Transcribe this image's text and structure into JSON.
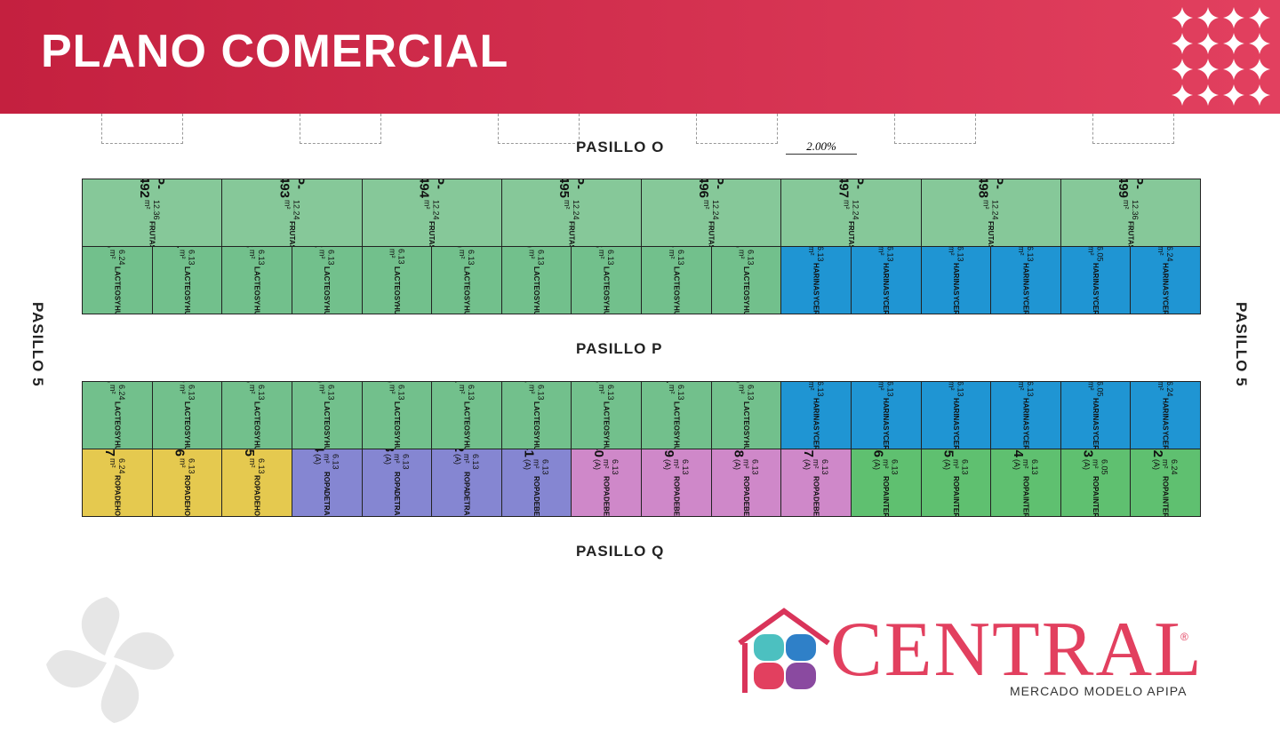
{
  "header": {
    "title": "PLANO COMERCIAL"
  },
  "aisles": {
    "top": "PASILLO O",
    "middle": "PASILLO P",
    "bottom": "PASILLO Q",
    "left": "PASILLO 5",
    "right": "PASILLO 5",
    "slope": "2.00%"
  },
  "rows": [
    {
      "stalls": [
        {
          "id": "P-492",
          "area": "12.36 m²",
          "use": [
            "FRUTAS"
          ],
          "color": "#86c899"
        },
        {
          "id": "P-493",
          "area": "12.24 m²",
          "use": [
            "FRUTAS"
          ],
          "color": "#86c899"
        },
        {
          "id": "P-494",
          "area": "12.24 m²",
          "use": [
            "FRUTAS"
          ],
          "color": "#86c899"
        },
        {
          "id": "P-495",
          "area": "12.24 m²",
          "use": [
            "FRUTAS"
          ],
          "color": "#86c899"
        },
        {
          "id": "P-496",
          "area": "12.24 m²",
          "use": [
            "FRUTAS"
          ],
          "color": "#86c899"
        },
        {
          "id": "P-497",
          "area": "12.24 m²",
          "use": [
            "FRUTAS"
          ],
          "color": "#86c899"
        },
        {
          "id": "P-498",
          "area": "12.24 m²",
          "use": [
            "FRUTAS"
          ],
          "color": "#86c899"
        },
        {
          "id": "P-499",
          "area": "12.36 m²",
          "use": [
            "FRUTAS"
          ],
          "color": "#86c899"
        }
      ]
    },
    {
      "stalls": [
        {
          "id": "P-515",
          "area": "6.24 m²",
          "use": [
            "LACTEOS",
            "Y",
            "HUEVOS"
          ],
          "color": "#72c08c"
        },
        {
          "id": "P-514",
          "area": "6.13 m²",
          "use": [
            "LACTEOS",
            "Y",
            "HUEVOS"
          ],
          "color": "#72c08c"
        },
        {
          "id": "P-513",
          "area": "6.13 m²",
          "use": [
            "LACTEOS",
            "Y",
            "HUEVOS"
          ],
          "color": "#72c08c"
        },
        {
          "id": "P-512",
          "area": "6.13 m²",
          "use": [
            "LACTEOS",
            "Y",
            "HUEVOS"
          ],
          "color": "#72c08c"
        },
        {
          "id": "P-511",
          "area": "6.13 m²",
          "use": [
            "LACTEOS",
            "Y",
            "HUEVOS"
          ],
          "color": "#72c08c"
        },
        {
          "id": "P-510",
          "area": "6.13 m²",
          "use": [
            "LACTEOS",
            "Y",
            "HUEVOS"
          ],
          "color": "#72c08c"
        },
        {
          "id": "P-509",
          "area": "6.13 m²",
          "use": [
            "LACTEOS",
            "Y",
            "HUEVOS"
          ],
          "color": "#72c08c"
        },
        {
          "id": "P-508",
          "area": "6.13 m²",
          "use": [
            "LACTEOS",
            "Y",
            "HUEVOS"
          ],
          "color": "#72c08c"
        },
        {
          "id": "P-507",
          "area": "6.13 m²",
          "use": [
            "LACTEOS",
            "Y",
            "HUEVOS"
          ],
          "color": "#72c08c"
        },
        {
          "id": "P-506",
          "area": "6.13 m²",
          "use": [
            "LACTEOS",
            "Y",
            "HUEVOS"
          ],
          "color": "#72c08c"
        },
        {
          "id": "P-505",
          "area": "6.13 m²",
          "use": [
            "HARINAS",
            "Y",
            "CEREALES"
          ],
          "color": "#1f95d3"
        },
        {
          "id": "P-504",
          "area": "6.13 m²",
          "use": [
            "HARINAS",
            "Y",
            "CEREALES"
          ],
          "color": "#1f95d3"
        },
        {
          "id": "P-503",
          "area": "6.13 m²",
          "use": [
            "HARINAS",
            "Y",
            "CEREALES"
          ],
          "color": "#1f95d3"
        },
        {
          "id": "P-502",
          "area": "6.13 m²",
          "use": [
            "HARINAS",
            "Y",
            "CEREALES"
          ],
          "color": "#1f95d3"
        },
        {
          "id": "P-501",
          "area": "6.05 m²",
          "use": [
            "HARINAS",
            "Y",
            "CEREALES"
          ],
          "color": "#1f95d3"
        },
        {
          "id": "P-500",
          "area": "6.24 m²",
          "use": [
            "HARINAS",
            "Y",
            "CEREALES"
          ],
          "color": "#1f95d3"
        }
      ]
    },
    {
      "stalls": [
        {
          "id": "P-516",
          "area": "6.24 m²",
          "use": [
            "LACTEOS",
            "Y",
            "HUEVOS"
          ],
          "color": "#72c08c"
        },
        {
          "id": "P-517",
          "area": "6.13 m²",
          "use": [
            "LACTEOS",
            "Y",
            "HUEVOS"
          ],
          "color": "#72c08c"
        },
        {
          "id": "P-518",
          "area": "6.13 m²",
          "use": [
            "LACTEOS",
            "Y",
            "HUEVOS"
          ],
          "color": "#72c08c"
        },
        {
          "id": "P-519",
          "area": "6.13 m²",
          "use": [
            "LACTEOS",
            "Y",
            "HUEVOS"
          ],
          "color": "#72c08c"
        },
        {
          "id": "P-520",
          "area": "6.13 m²",
          "use": [
            "LACTEOS",
            "Y",
            "HUEVOS"
          ],
          "color": "#72c08c"
        },
        {
          "id": "P-521",
          "area": "6.13 m²",
          "use": [
            "LACTEOS",
            "Y",
            "HUEVOS"
          ],
          "color": "#72c08c"
        },
        {
          "id": "P-522",
          "area": "6.13 m²",
          "use": [
            "LACTEOS",
            "Y",
            "HUEVOS"
          ],
          "color": "#72c08c"
        },
        {
          "id": "P-523",
          "area": "6.13 m²",
          "use": [
            "LACTEOS",
            "Y",
            "HUEVOS"
          ],
          "color": "#72c08c"
        },
        {
          "id": "P-524",
          "area": "6.13 m²",
          "use": [
            "LACTEOS",
            "Y",
            "HUEVOS"
          ],
          "color": "#72c08c"
        },
        {
          "id": "P-525",
          "area": "6.13 m²",
          "use": [
            "LACTEOS",
            "Y",
            "HUEVOS"
          ],
          "color": "#72c08c"
        },
        {
          "id": "P-526",
          "area": "6.13 m²",
          "use": [
            "HARINAS",
            "Y",
            "CEREALES"
          ],
          "color": "#1f95d3"
        },
        {
          "id": "P-527",
          "area": "6.13 m²",
          "use": [
            "HARINAS",
            "Y",
            "CEREALES"
          ],
          "color": "#1f95d3"
        },
        {
          "id": "P-528",
          "area": "6.13 m²",
          "use": [
            "HARINAS",
            "Y",
            "CEREALES"
          ],
          "color": "#1f95d3"
        },
        {
          "id": "P-529",
          "area": "6.13 m²",
          "use": [
            "HARINAS",
            "Y",
            "CEREALES"
          ],
          "color": "#1f95d3"
        },
        {
          "id": "P-530",
          "area": "6.05 m²",
          "use": [
            "HARINAS",
            "Y",
            "CEREALES"
          ],
          "color": "#1f95d3"
        },
        {
          "id": "P-531",
          "area": "6.24 m²",
          "use": [
            "HARINAS",
            "Y",
            "CEREALES"
          ],
          "color": "#1f95d3"
        }
      ]
    },
    {
      "stalls": [
        {
          "id": "P-547",
          "area": "6.24 m²",
          "use": [
            "ROPA",
            "DE",
            "HOGAR"
          ],
          "color": "#e5c94f"
        },
        {
          "id": "P-546",
          "area": "6.13 m²",
          "use": [
            "ROPA",
            "DE",
            "HOGAR"
          ],
          "color": "#e5c94f"
        },
        {
          "id": "P-545",
          "area": "6.13 m²",
          "use": [
            "ROPA",
            "DE",
            "HOGAR"
          ],
          "color": "#e5c94f"
        },
        {
          "id": "P-544",
          "area": "6.13 m² (A)",
          "use": [
            "ROPA",
            "DE",
            "TRABAJO"
          ],
          "color": "#8586d2"
        },
        {
          "id": "P-543",
          "area": "6.13 m² (A)",
          "use": [
            "ROPA",
            "DE",
            "TRABAJO"
          ],
          "color": "#8586d2"
        },
        {
          "id": "P-542",
          "area": "6.13 m² (A)",
          "use": [
            "ROPA",
            "DE",
            "TRABAJO"
          ],
          "color": "#8586d2"
        },
        {
          "id": "P-541",
          "area": "6.13 m² (A)",
          "use": [
            "ROPA",
            "DE",
            "BEBES"
          ],
          "color": "#8586d2"
        },
        {
          "id": "P-540",
          "area": "6.13 m² (A)",
          "use": [
            "ROPA",
            "DE",
            "BEBES"
          ],
          "color": "#cf88c9"
        },
        {
          "id": "P-539",
          "area": "6.13 m² (A)",
          "use": [
            "ROPA",
            "DE",
            "BEBES"
          ],
          "color": "#cf88c9"
        },
        {
          "id": "P-538",
          "area": "6.13 m² (A)",
          "use": [
            "ROPA",
            "DE",
            "BEBES"
          ],
          "color": "#cf88c9"
        },
        {
          "id": "P-537",
          "area": "6.13 m² (A)",
          "use": [
            "ROPA",
            "DE",
            "BEBES"
          ],
          "color": "#cf88c9"
        },
        {
          "id": "P-536",
          "area": "6.13 m² (A)",
          "use": [
            "ROPA",
            "INTERIOR"
          ],
          "color": "#5fc070"
        },
        {
          "id": "P-535",
          "area": "6.13 m² (A)",
          "use": [
            "ROPA",
            "INTERIOR"
          ],
          "color": "#5fc070"
        },
        {
          "id": "P-534",
          "area": "6.13 m² (A)",
          "use": [
            "ROPA",
            "INTERIOR"
          ],
          "color": "#5fc070"
        },
        {
          "id": "P-533",
          "area": "6.05 m² (A)",
          "use": [
            "ROPA",
            "INTERIOR"
          ],
          "color": "#5fc070"
        },
        {
          "id": "P-532",
          "area": "6.24 m² (A)",
          "use": [
            "ROPA",
            "INTERIOR"
          ],
          "color": "#5fc070"
        }
      ]
    }
  ],
  "logo": {
    "name": "CENTRAL",
    "registered": "®",
    "subtitle": "MERCADO MODELO APIPA"
  }
}
